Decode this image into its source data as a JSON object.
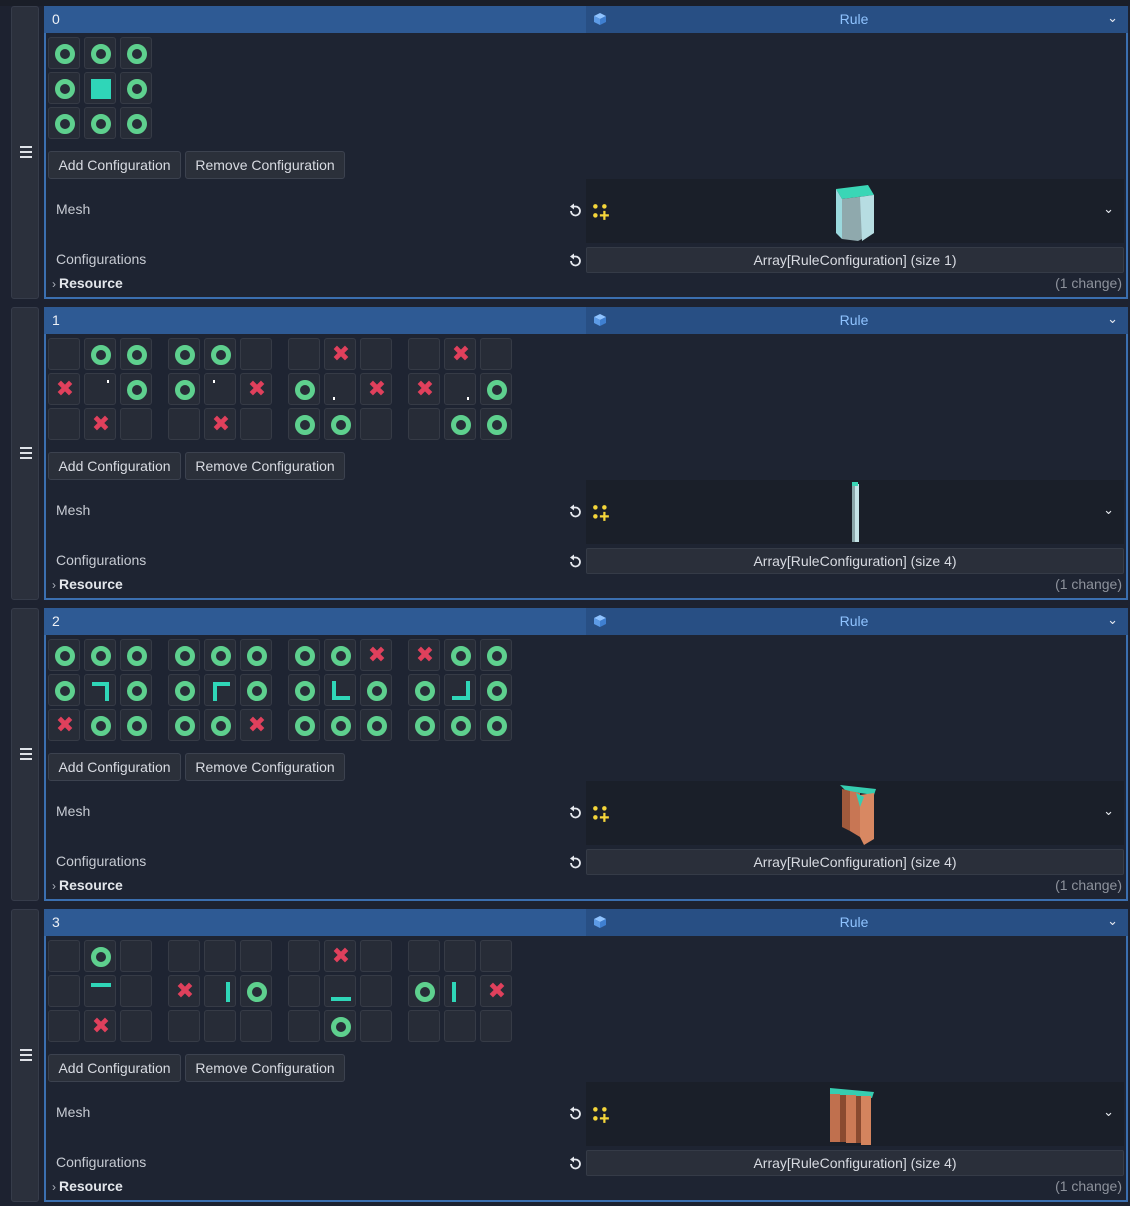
{
  "rules": [
    {
      "index": "0",
      "type_label": "Rule",
      "add_label": "Add Configuration",
      "remove_label": "Remove Configuration",
      "mesh_label": "Mesh",
      "mesh_icon": "cube-mesh",
      "configurations_label": "Configurations",
      "configurations_value": "Array[RuleConfiguration] (size 1)",
      "resource_label": "Resource",
      "change_text": "(1 change)",
      "grids": [
        [
          "o",
          "o",
          "o",
          "o",
          "fill",
          "o",
          "o",
          "o",
          "o"
        ]
      ]
    },
    {
      "index": "1",
      "type_label": "Rule",
      "add_label": "Add Configuration",
      "remove_label": "Remove Configuration",
      "mesh_label": "Mesh",
      "mesh_icon": "pillar-mesh",
      "configurations_label": "Configurations",
      "configurations_value": "Array[RuleConfiguration] (size 4)",
      "resource_label": "Resource",
      "change_text": "(1 change)",
      "grids": [
        [
          "e",
          "o",
          "o",
          "x",
          "dot-tr",
          "o",
          "e",
          "x",
          "e"
        ],
        [
          "o",
          "o",
          "e",
          "o",
          "dot-tl",
          "x",
          "e",
          "x",
          "e"
        ],
        [
          "e",
          "x",
          "e",
          "o",
          "dot-bl",
          "x",
          "o",
          "o",
          "e"
        ],
        [
          "e",
          "x",
          "e",
          "x",
          "dot-br",
          "o",
          "e",
          "o",
          "o"
        ]
      ]
    },
    {
      "index": "2",
      "type_label": "Rule",
      "add_label": "Add Configuration",
      "remove_label": "Remove Configuration",
      "mesh_label": "Mesh",
      "mesh_icon": "corner-cliff-mesh",
      "configurations_label": "Configurations",
      "configurations_value": "Array[RuleConfiguration] (size 4)",
      "resource_label": "Resource",
      "change_text": "(1 change)",
      "grids": [
        [
          "o",
          "o",
          "o",
          "o",
          "corner-tr",
          "o",
          "x",
          "o",
          "o"
        ],
        [
          "o",
          "o",
          "o",
          "o",
          "corner-tl",
          "o",
          "o",
          "o",
          "x"
        ],
        [
          "o",
          "o",
          "x",
          "o",
          "corner-bl",
          "o",
          "o",
          "o",
          "o"
        ],
        [
          "x",
          "o",
          "o",
          "o",
          "corner-br",
          "o",
          "o",
          "o",
          "o"
        ]
      ]
    },
    {
      "index": "3",
      "type_label": "Rule",
      "add_label": "Add Configuration",
      "remove_label": "Remove Configuration",
      "mesh_label": "Mesh",
      "mesh_icon": "wall-cliff-mesh",
      "configurations_label": "Configurations",
      "configurations_value": "Array[RuleConfiguration] (size 4)",
      "resource_label": "Resource",
      "change_text": "(1 change)",
      "grids": [
        [
          "e",
          "o",
          "e",
          "e",
          "edge-t",
          "e",
          "e",
          "x",
          "e"
        ],
        [
          "e",
          "e",
          "e",
          "x",
          "edge-r",
          "o",
          "e",
          "e",
          "e"
        ],
        [
          "e",
          "x",
          "e",
          "e",
          "edge-b",
          "e",
          "e",
          "o",
          "e"
        ],
        [
          "e",
          "e",
          "e",
          "o",
          "edge-l",
          "x",
          "e",
          "e",
          "e"
        ]
      ]
    }
  ],
  "colors": {
    "ring": "#5ed08e",
    "cross": "#e0405c",
    "tile": "#2fd6b8",
    "header": "#2e5a94",
    "accent_text": "#8fc3ff"
  }
}
